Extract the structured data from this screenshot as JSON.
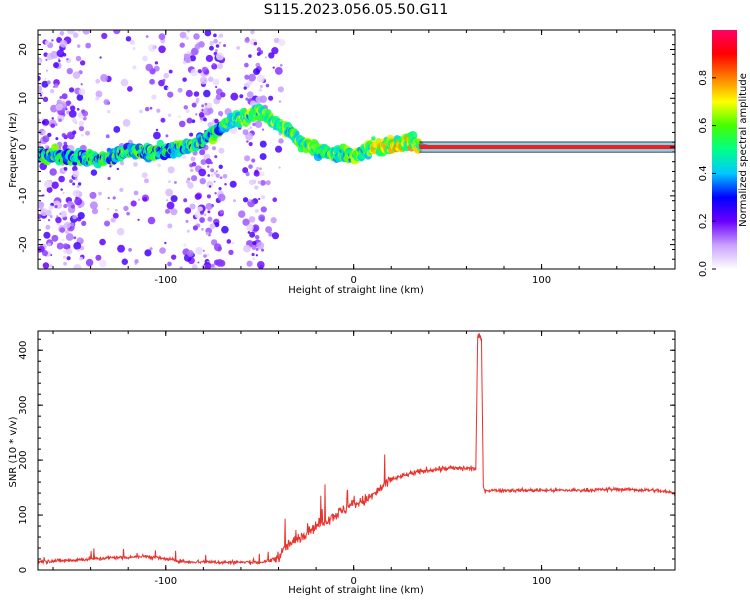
{
  "title": "S115.2023.056.05.50.G11",
  "chart_data": [
    {
      "type": "heatmap",
      "xlabel": "Height of straight line (km)",
      "ylabel": "Frequency (Hz)",
      "xlim": [
        -168,
        171
      ],
      "ylim": [
        -25,
        24
      ],
      "xticks": [
        -100,
        0,
        100
      ],
      "yticks": [
        -20,
        -10,
        0,
        10,
        20
      ],
      "colorbar": {
        "label": "Normalized spectral amplitude",
        "range": [
          0,
          1
        ],
        "ticks": [
          "0.0",
          "0.2",
          "0.4",
          "0.6",
          "0.8"
        ],
        "colors": [
          "#ffffff",
          "#c9a0ff",
          "#6a00ff",
          "#0000ff",
          "#00c8ff",
          "#00ff88",
          "#44ff00",
          "#ffff00",
          "#ff7f00",
          "#ff0000",
          "#ff0066"
        ]
      },
      "ridge": {
        "x": [
          -168,
          -150,
          -135,
          -120,
          -105,
          -95,
          -85,
          -75,
          -65,
          -55,
          -48,
          -42,
          -35,
          -28,
          -20,
          -12,
          -5,
          0,
          5,
          10,
          20,
          30,
          40,
          60,
          100,
          171
        ],
        "y": [
          -1.5,
          -2.0,
          -2.5,
          -1.0,
          -1.0,
          -0.5,
          0.5,
          2.5,
          5.5,
          6.5,
          7.0,
          5.0,
          3.5,
          1.0,
          -0.5,
          -1.5,
          -1.5,
          -2.0,
          -1.0,
          0.0,
          0.5,
          1.0,
          0.0,
          0.0,
          0.0,
          0.0
        ]
      },
      "grid": false
    },
    {
      "type": "line",
      "xlabel": "Height of straight line (km)",
      "ylabel": "SNR (10 * v/v)",
      "xlim": [
        -168,
        171
      ],
      "ylim": [
        0,
        435
      ],
      "xticks": [
        -100,
        0,
        100
      ],
      "yticks": [
        0,
        100,
        200,
        300,
        400
      ],
      "series": [
        {
          "color": "#e8322c",
          "x": [
            -168,
            -150,
            -130,
            -110,
            -100,
            -90,
            -80,
            -70,
            -60,
            -50,
            -45,
            -40,
            -35,
            -30,
            -25,
            -20,
            -15,
            -10,
            -5,
            0,
            5,
            10,
            15,
            20,
            25,
            30,
            40,
            50,
            60,
            65,
            66,
            67,
            68,
            69,
            70,
            80,
            100,
            120,
            140,
            160,
            171
          ],
          "y": [
            15,
            18,
            22,
            25,
            20,
            15,
            15,
            14,
            14,
            14,
            16,
            25,
            45,
            55,
            70,
            80,
            90,
            100,
            110,
            120,
            125,
            135,
            150,
            165,
            170,
            175,
            182,
            185,
            185,
            185,
            425,
            425,
            420,
            150,
            145,
            145,
            145,
            145,
            147,
            145,
            140
          ]
        }
      ],
      "grid": false
    }
  ]
}
